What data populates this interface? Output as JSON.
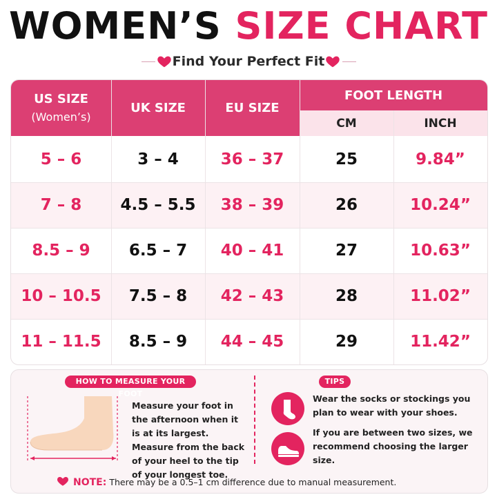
{
  "header": {
    "title_part1": "WOMEN’S",
    "title_part2": "SIZE CHART",
    "subtitle": "Find Your Perfect Fit"
  },
  "table": {
    "col_us": "US SIZE",
    "col_us_sub": "(Women’s)",
    "col_uk": "UK SIZE",
    "col_eu": "EU SIZE",
    "col_foot": "FOOT LENGTH",
    "col_cm": "CM",
    "col_inch": "INCH",
    "rows": [
      {
        "us": "5 – 6",
        "uk": "3 – 4",
        "eu": "36 – 37",
        "cm": "25",
        "inch": "9.84”"
      },
      {
        "us": "7 – 8",
        "uk": "4.5 – 5.5",
        "eu": "38 – 39",
        "cm": "26",
        "inch": "10.24”"
      },
      {
        "us": "8.5 – 9",
        "uk": "6.5 – 7",
        "eu": "40 – 41",
        "cm": "27",
        "inch": "10.63”"
      },
      {
        "us": "10 – 10.5",
        "uk": "7.5 – 8",
        "eu": "42 – 43",
        "cm": "28",
        "inch": "11.02”"
      },
      {
        "us": "11 – 11.5",
        "uk": "8.5 – 9",
        "eu": "44 – 45",
        "cm": "29",
        "inch": "11.42”"
      }
    ]
  },
  "measure": {
    "tag": "HOW TO MEASURE YOUR FOOT",
    "text": "Measure your foot in the afternoon when it is at its largest. Measure from the back of your heel to the tip of your longest toe."
  },
  "tips": {
    "tag": "TIPS",
    "tip1": "Wear the socks or stockings you plan to wear with your shoes.",
    "tip2": "If you are between two sizes, we recommend choosing the larger size."
  },
  "note": {
    "label": "NOTE:",
    "text": "There may be a 0.5–1 cm difference due to manual measurement."
  },
  "colors": {
    "accent": "#e3245f",
    "header_bg": "#dc3f73",
    "sub_header_bg": "#fbe3ea",
    "alt_row_bg": "#fdf1f4"
  }
}
